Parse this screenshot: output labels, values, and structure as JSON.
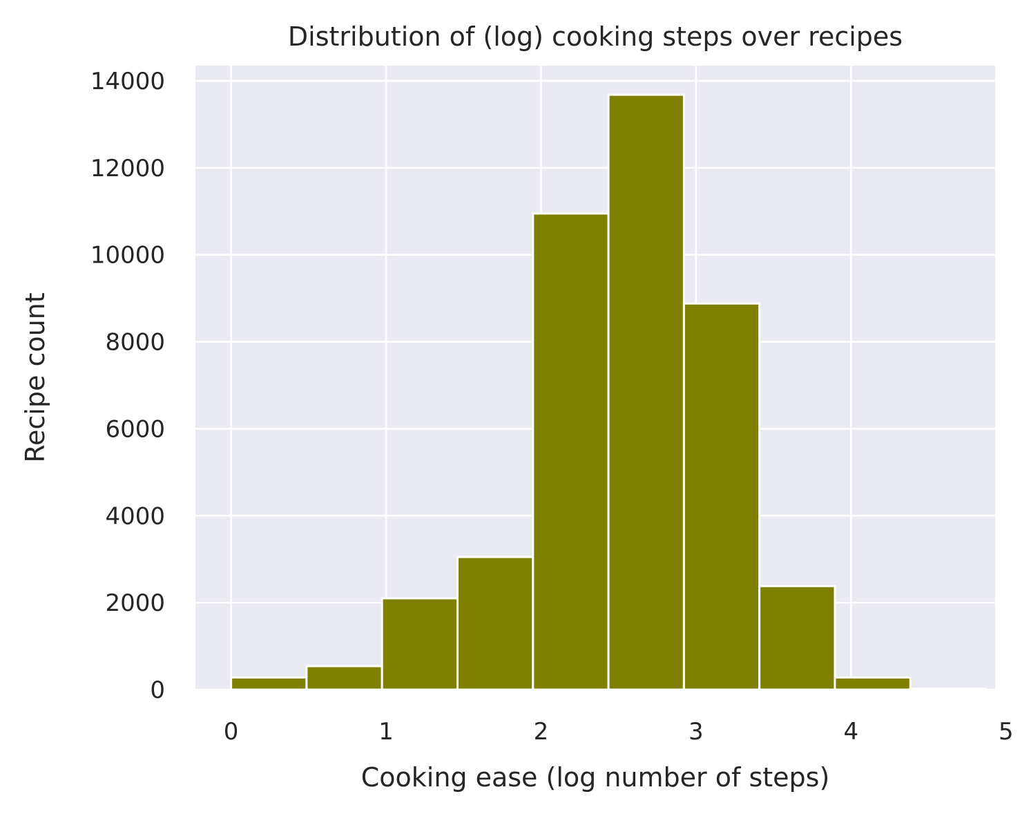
{
  "chart_data": {
    "type": "bar",
    "title": "Distribution of (log) cooking steps over recipes",
    "xlabel": "Cooking ease (log number of steps)",
    "ylabel": "Recipe count",
    "xlim": [
      -0.23,
      4.93
    ],
    "ylim": [
      0,
      14350
    ],
    "xticks": [
      0,
      1,
      2,
      3,
      4,
      5
    ],
    "yticks": [
      0,
      2000,
      4000,
      6000,
      8000,
      10000,
      12000,
      14000
    ],
    "bin_edges": [
      0,
      0.487,
      0.974,
      1.461,
      1.948,
      2.435,
      2.922,
      3.409,
      3.896,
      4.383,
      4.87
    ],
    "values": [
      280,
      540,
      2100,
      3050,
      10950,
      13680,
      8880,
      2380,
      280,
      20
    ],
    "grid": true,
    "colors": {
      "bar": "#808000",
      "bar_edge": "#ffffff",
      "plot_background": "#eaeaf2",
      "grid": "#ffffff",
      "text": "#262626"
    }
  }
}
